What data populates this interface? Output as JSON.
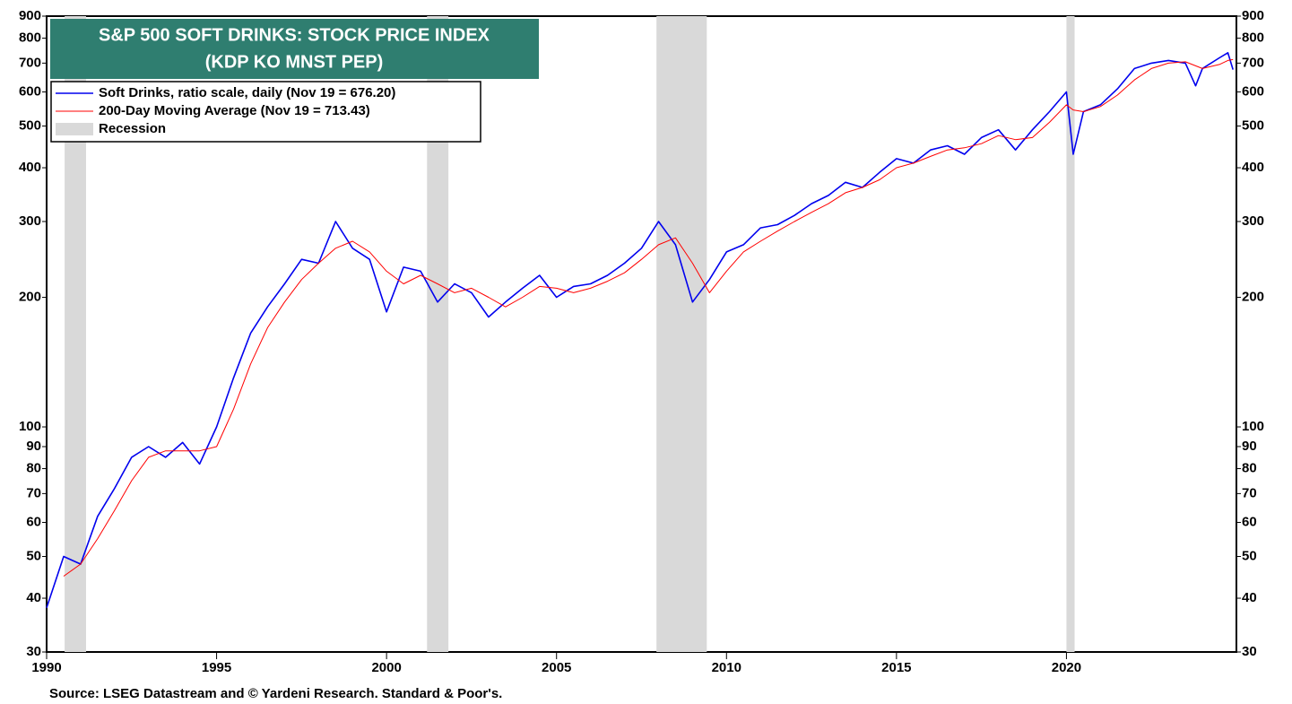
{
  "chart_data": {
    "type": "line",
    "title": "S&P 500 SOFT DRINKS: STOCK PRICE INDEX",
    "subtitle": "(KDP KO MNST PEP)",
    "source": "Source: LSEG Datastream and © Yardeni Research. Standard & Poor's.",
    "log_scale": true,
    "legend": "upper left",
    "xlim": [
      1990,
      2025
    ],
    "xticks": [
      1990,
      1995,
      2000,
      2005,
      2010,
      2015,
      2020
    ],
    "ylim": [
      30,
      900
    ],
    "yticks": [
      30,
      40,
      50,
      60,
      70,
      80,
      90,
      100,
      200,
      300,
      400,
      500,
      600,
      700,
      800,
      900
    ],
    "x": [
      1990.0,
      1990.5,
      1991.0,
      1991.5,
      1992.0,
      1992.5,
      1993.0,
      1993.5,
      1994.0,
      1994.5,
      1995.0,
      1995.5,
      1996.0,
      1996.5,
      1997.0,
      1997.5,
      1998.0,
      1998.5,
      1999.0,
      1999.5,
      2000.0,
      2000.5,
      2001.0,
      2001.5,
      2002.0,
      2002.5,
      2003.0,
      2003.5,
      2004.0,
      2004.5,
      2005.0,
      2005.5,
      2006.0,
      2006.5,
      2007.0,
      2007.5,
      2008.0,
      2008.5,
      2009.0,
      2009.5,
      2010.0,
      2010.5,
      2011.0,
      2011.5,
      2012.0,
      2012.5,
      2013.0,
      2013.5,
      2014.0,
      2014.5,
      2015.0,
      2015.5,
      2016.0,
      2016.5,
      2017.0,
      2017.5,
      2018.0,
      2018.5,
      2019.0,
      2019.5,
      2020.0,
      2020.2,
      2020.5,
      2021.0,
      2021.5,
      2022.0,
      2022.5,
      2023.0,
      2023.5,
      2023.8,
      2024.0,
      2024.5,
      2024.75,
      2024.9
    ],
    "series": [
      {
        "name": "Soft Drinks, ratio scale, daily (Nov 19 = 676.20)",
        "color": "#0000ee",
        "values": [
          38,
          50,
          48,
          62,
          72,
          85,
          90,
          85,
          92,
          82,
          100,
          130,
          165,
          190,
          215,
          245,
          240,
          300,
          260,
          245,
          185,
          235,
          230,
          195,
          215,
          205,
          180,
          195,
          210,
          225,
          200,
          212,
          215,
          225,
          240,
          260,
          300,
          265,
          195,
          220,
          255,
          265,
          290,
          295,
          310,
          330,
          345,
          370,
          360,
          390,
          420,
          410,
          440,
          450,
          430,
          470,
          490,
          440,
          490,
          540,
          600,
          430,
          540,
          560,
          610,
          680,
          700,
          710,
          700,
          620,
          680,
          720,
          740,
          676.2
        ]
      },
      {
        "name": "200-Day Moving Average (Nov 19 = 713.43)",
        "color": "#ff0000",
        "values": [
          null,
          45,
          48,
          55,
          64,
          75,
          85,
          88,
          88,
          88,
          90,
          110,
          140,
          170,
          195,
          220,
          240,
          260,
          270,
          255,
          230,
          215,
          225,
          215,
          205,
          210,
          200,
          190,
          200,
          212,
          210,
          205,
          210,
          218,
          228,
          245,
          265,
          275,
          240,
          205,
          230,
          255,
          270,
          285,
          300,
          315,
          330,
          350,
          360,
          375,
          400,
          410,
          425,
          440,
          445,
          455,
          475,
          465,
          470,
          510,
          560,
          545,
          540,
          555,
          590,
          640,
          680,
          700,
          705,
          690,
          680,
          695,
          710,
          713.43
        ]
      }
    ],
    "recession_label": "Recession",
    "recession_color": "#d9d9d9",
    "recessions": [
      [
        1990.53,
        1991.16
      ],
      [
        2001.19,
        2001.82
      ],
      [
        2007.94,
        2009.42
      ],
      [
        2020.0,
        2020.24
      ]
    ]
  }
}
